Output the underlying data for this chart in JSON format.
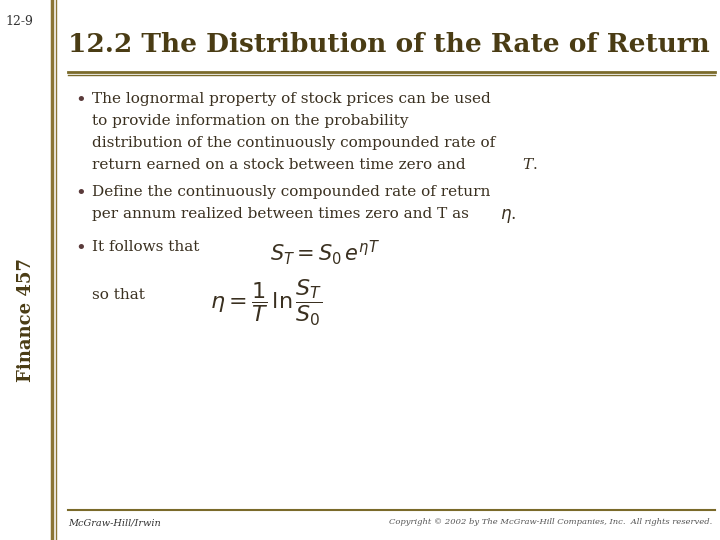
{
  "slide_number": "12-9",
  "sidebar_text": "Finance 457",
  "title": "12.2 The Distribution of the Rate of Return",
  "title_color": "#4a3c14",
  "title_line_color": "#7a6a2a",
  "background_color": "#ffffff",
  "sidebar_line_color": "#8B7536",
  "bullet_color": "#5a3a3a",
  "text_color": "#3a3020",
  "footer_left": "McGraw-Hill/Irwin",
  "footer_right": "Copyright © 2002 by The McGraw-Hill Companies, Inc.  All rights reserved."
}
